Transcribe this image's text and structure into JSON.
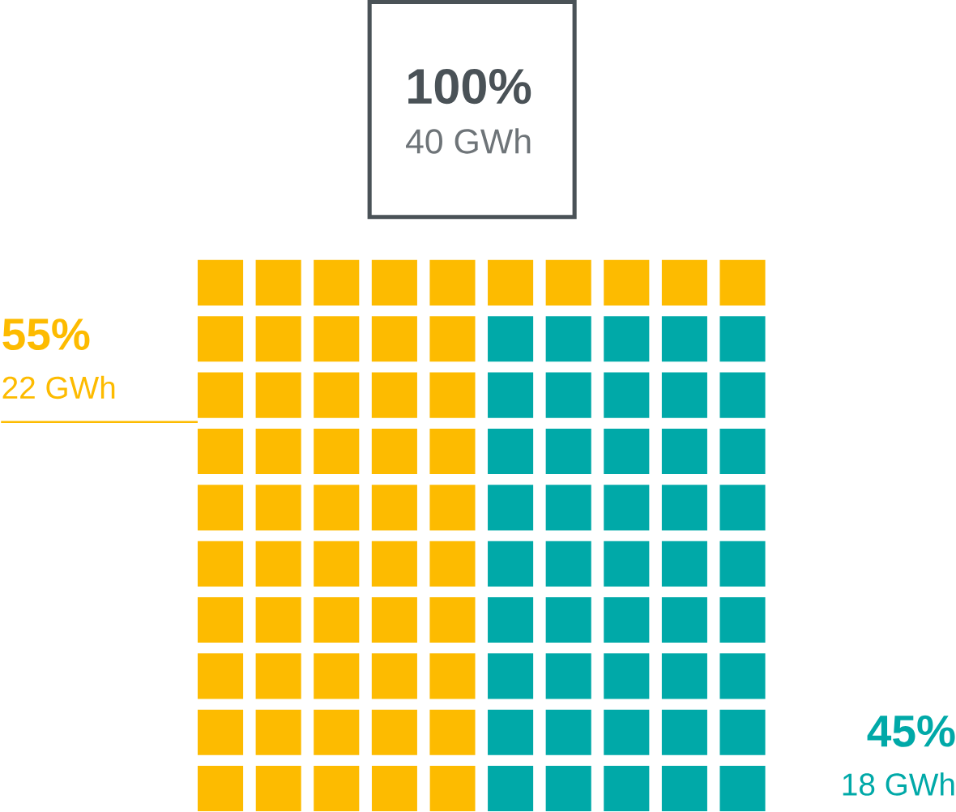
{
  "chart_data": {
    "type": "other",
    "title": "100%",
    "subtitle": "40 GWh",
    "categories": [
      null,
      null
    ],
    "values": [
      55,
      45
    ],
    "value_labels": [
      "55%",
      "45%"
    ],
    "colors": [
      "#fdbb00",
      "#00a9a8"
    ],
    "annotations": [
      "22 GWh",
      "18 GWh"
    ]
  }
}
